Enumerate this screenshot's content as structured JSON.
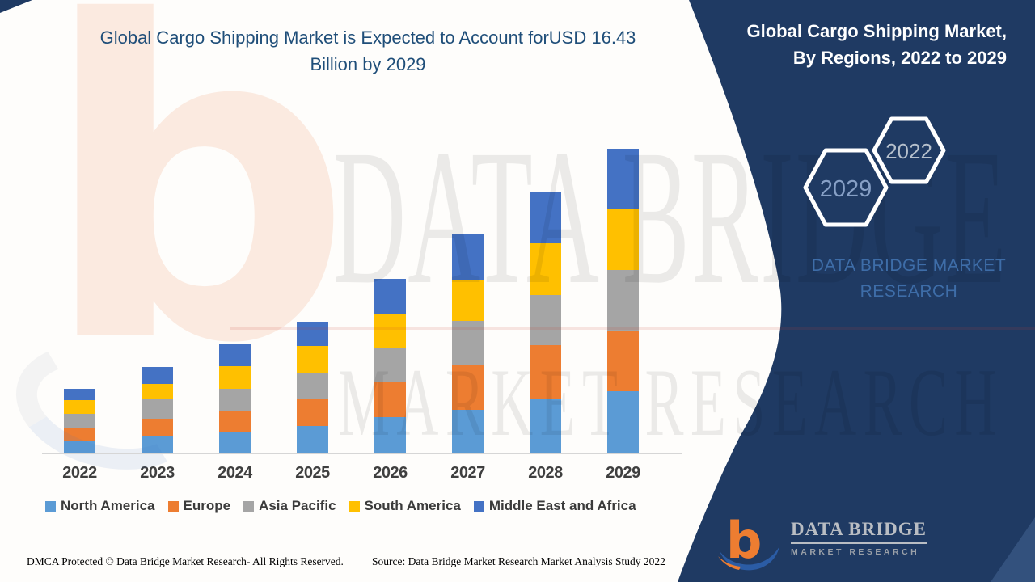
{
  "header": {
    "title_line1": "Global Cargo Shipping Market is Expected to Account forUSD 16.43",
    "title_line2": "Billion by 2029"
  },
  "panel": {
    "title_line1": "Global Cargo Shipping Market,",
    "title_line2": "By Regions, 2022 to 2029",
    "hex_large_label": "2029",
    "hex_small_label": "2022",
    "brand_line1": "DATA BRIDGE MARKET",
    "brand_line2": "RESEARCH",
    "logo_b": "b",
    "logo_name": "DATA BRIDGE",
    "logo_tagline": "MARKET RESEARCH",
    "bg_color": "#1f3a63"
  },
  "watermarks": {
    "letter_b": "b",
    "line1": "DATA BRIDGE",
    "line2": "MARKET RESEARCH"
  },
  "footer": {
    "left": "DMCA Protected © Data Bridge Market Research- All Rights Reserved.",
    "source": "Source: Data Bridge Market Research Market Analysis Study 2022"
  },
  "chart_data": {
    "type": "bar",
    "stacked": true,
    "title": "Global Cargo Shipping Market is Expected to Account forUSD 16.43 Billion by 2029",
    "unit": "USD Billion",
    "xlabel": "",
    "ylabel": "",
    "ylim": [
      0,
      17
    ],
    "grid": false,
    "legend_position": "bottom",
    "categories": [
      "2022",
      "2023",
      "2024",
      "2025",
      "2026",
      "2027",
      "2028",
      "2029"
    ],
    "series": [
      {
        "name": "North America",
        "color": "#5B9BD5",
        "values": [
          0.66,
          0.87,
          1.09,
          1.44,
          1.92,
          2.32,
          2.88,
          3.32
        ]
      },
      {
        "name": "Europe",
        "color": "#ED7D31",
        "values": [
          0.7,
          0.96,
          1.18,
          1.44,
          1.88,
          2.4,
          2.93,
          3.28
        ]
      },
      {
        "name": "Asia Pacific",
        "color": "#A5A5A5",
        "values": [
          0.74,
          1.09,
          1.18,
          1.44,
          1.84,
          2.4,
          2.71,
          3.28
        ]
      },
      {
        "name": "South America",
        "color": "#FFC000",
        "values": [
          0.74,
          0.79,
          1.22,
          1.44,
          1.84,
          2.23,
          2.8,
          3.32
        ]
      },
      {
        "name": "Middle East and Africa",
        "color": "#4472C4",
        "values": [
          0.61,
          0.92,
          1.18,
          1.31,
          1.92,
          2.45,
          2.75,
          3.23
        ]
      }
    ],
    "totals": [
      3.45,
      4.63,
      5.85,
      7.07,
      9.4,
      11.8,
      14.07,
      16.43
    ]
  }
}
